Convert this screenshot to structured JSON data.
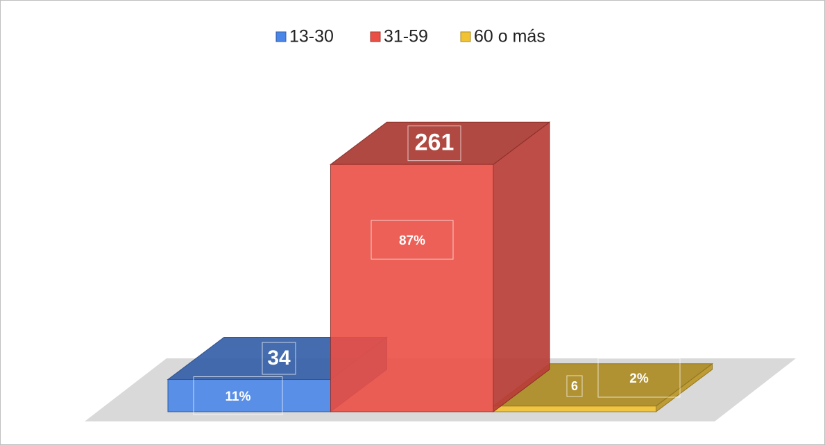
{
  "chart_data": {
    "type": "bar3d",
    "series": [
      {
        "name": "13-30",
        "color": "#4a86e8",
        "values": [
          34
        ],
        "percentages": [
          11
        ],
        "percentage_labels": [
          "11%"
        ]
      },
      {
        "name": "31-59",
        "color": "#ea4f45",
        "values": [
          261
        ],
        "percentages": [
          87
        ],
        "percentage_labels": [
          "87%"
        ]
      },
      {
        "name": "60 o más",
        "color": "#f1c232",
        "values": [
          6
        ],
        "percentages": [
          2
        ],
        "percentage_labels": [
          "2%"
        ]
      }
    ],
    "legend": "top"
  }
}
